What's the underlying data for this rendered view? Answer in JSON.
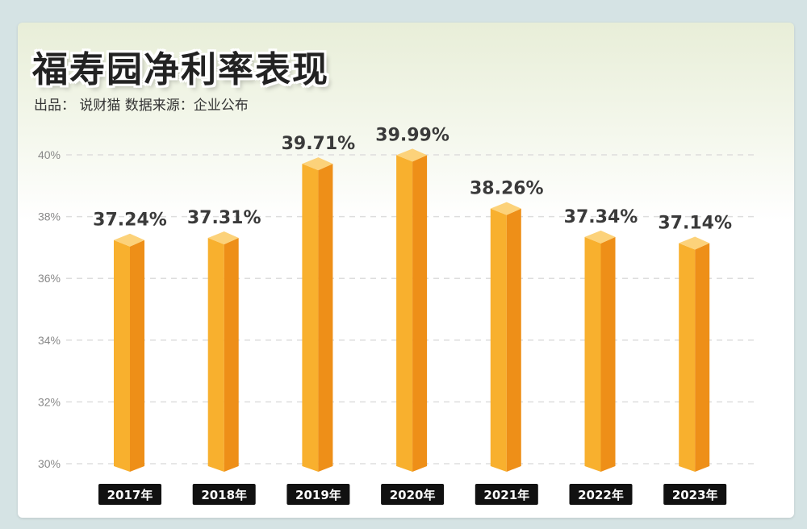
{
  "title": "福寿园净利率表现",
  "subtitle": "出品： 说财猫  数据来源：企业公布",
  "colors": {
    "bar_front": "#f8b02e",
    "bar_side": "#ee8f18",
    "bar_top": "#fcd27a",
    "grid": "#dddddd",
    "label_bg": "#111111"
  },
  "chart_data": {
    "type": "bar",
    "categories": [
      "2017年",
      "2018年",
      "2019年",
      "2020年",
      "2021年",
      "2022年",
      "2023年"
    ],
    "values": [
      37.24,
      37.31,
      39.71,
      39.99,
      38.26,
      37.34,
      37.14
    ],
    "data_labels": [
      "37.24%",
      "37.31%",
      "39.71%",
      "39.99%",
      "38.26%",
      "37.34%",
      "37.14%"
    ],
    "ylim": [
      30,
      40
    ],
    "yticks": [
      30,
      32,
      34,
      36,
      38,
      40
    ],
    "ytick_labels": [
      "30%",
      "32%",
      "34%",
      "36%",
      "38%",
      "40%"
    ],
    "grid": true,
    "title": "福寿园净利率表现"
  }
}
